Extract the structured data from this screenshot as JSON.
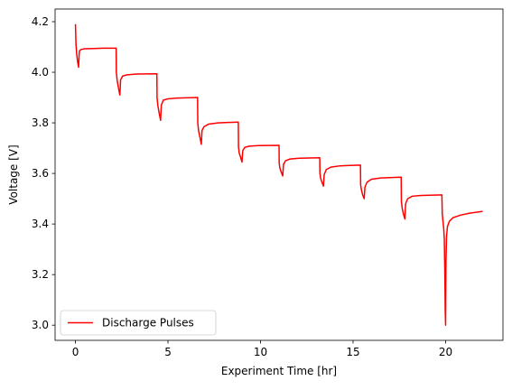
{
  "chart_data": {
    "type": "line",
    "title": "",
    "xlabel": "Experiment Time [hr]",
    "ylabel": "Voltage [V]",
    "xlim": [
      -1.1,
      23.1
    ],
    "ylim": [
      2.94,
      4.25
    ],
    "xticks": [
      0,
      5,
      10,
      15,
      20
    ],
    "yticks": [
      3.0,
      3.2,
      3.4,
      3.6,
      3.8,
      4.0,
      4.2
    ],
    "ytick_labels": [
      "3.0",
      "3.2",
      "3.4",
      "3.6",
      "3.8",
      "4.0",
      "4.2"
    ],
    "grid": false,
    "legend": {
      "placement": "lower-left",
      "entries": [
        "Discharge Pulses"
      ]
    },
    "series": [
      {
        "name": "Discharge Pulses",
        "color": "#ff0000",
        "x": [
          0.0,
          0.03,
          0.07,
          0.12,
          0.17,
          0.2,
          0.22,
          0.3,
          0.5,
          1.0,
          1.5,
          2.2,
          2.21,
          2.25,
          2.32,
          2.4,
          2.44,
          2.55,
          2.8,
          3.3,
          4.4,
          4.41,
          4.45,
          4.52,
          4.6,
          4.64,
          4.75,
          5.0,
          5.5,
          6.6,
          6.61,
          6.65,
          6.72,
          6.8,
          6.84,
          6.95,
          7.2,
          7.7,
          8.8,
          8.81,
          8.85,
          8.92,
          9.0,
          9.04,
          9.15,
          9.4,
          9.9,
          11.0,
          11.01,
          11.05,
          11.12,
          11.2,
          11.24,
          11.35,
          11.6,
          12.1,
          13.2,
          13.21,
          13.25,
          13.32,
          13.4,
          13.44,
          13.55,
          13.8,
          14.3,
          15.4,
          15.41,
          15.45,
          15.52,
          15.6,
          15.64,
          15.75,
          16.0,
          16.5,
          17.6,
          17.61,
          17.65,
          17.72,
          17.8,
          17.84,
          17.95,
          18.2,
          18.7,
          19.8,
          19.82,
          19.86,
          19.9,
          19.93,
          19.96,
          19.98,
          20.0,
          20.02,
          20.05,
          20.1,
          20.2,
          20.4,
          20.8,
          21.3,
          22.0
        ],
        "y": [
          4.19,
          4.11,
          4.07,
          4.04,
          4.02,
          4.07,
          4.085,
          4.09,
          4.093,
          4.094,
          4.095,
          4.095,
          4.0,
          3.97,
          3.94,
          3.91,
          3.97,
          3.985,
          3.99,
          3.993,
          3.994,
          3.9,
          3.87,
          3.84,
          3.81,
          3.87,
          3.89,
          3.895,
          3.898,
          3.9,
          3.8,
          3.77,
          3.745,
          3.715,
          3.77,
          3.785,
          3.795,
          3.8,
          3.803,
          3.705,
          3.68,
          3.665,
          3.645,
          3.69,
          3.703,
          3.708,
          3.71,
          3.711,
          3.64,
          3.62,
          3.605,
          3.59,
          3.635,
          3.65,
          3.657,
          3.66,
          3.662,
          3.6,
          3.58,
          3.565,
          3.55,
          3.595,
          3.615,
          3.625,
          3.63,
          3.633,
          3.555,
          3.535,
          3.515,
          3.5,
          3.545,
          3.565,
          3.577,
          3.582,
          3.585,
          3.49,
          3.465,
          3.44,
          3.42,
          3.48,
          3.5,
          3.51,
          3.513,
          3.515,
          3.44,
          3.41,
          3.38,
          3.34,
          3.2,
          3.06,
          3.0,
          3.25,
          3.35,
          3.39,
          3.41,
          3.425,
          3.435,
          3.443,
          3.45
        ]
      }
    ]
  }
}
